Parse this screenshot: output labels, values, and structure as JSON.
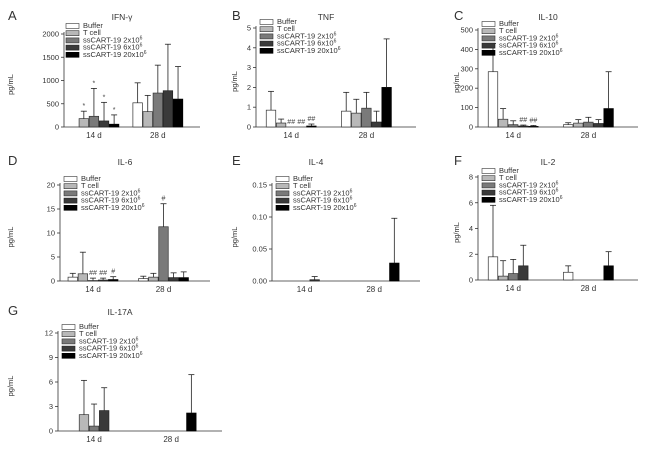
{
  "figure": {
    "legend_entries": [
      {
        "text": "Buffer",
        "sup": ""
      },
      {
        "text": "T cell",
        "sup": ""
      },
      {
        "text": "ssCART-19 2x10",
        "sup": "6"
      },
      {
        "text": "ssCART-19 6x10",
        "sup": "6"
      },
      {
        "text": "ssCART-19 20x10",
        "sup": "6"
      }
    ],
    "series_colors": [
      "#ffffff",
      "#b8b8b8",
      "#7a7a7a",
      "#3a3a3a",
      "#000000"
    ],
    "series_borders": [
      "#333333",
      "#333333",
      "#333333",
      "#222222",
      "#000000"
    ]
  },
  "chart_data": [
    {
      "letter": "A",
      "title": "IFN-γ",
      "type": "bar",
      "categories": [
        "14 d",
        "28 d"
      ],
      "ylabel": "pg/mL",
      "ylim": [
        0,
        2000
      ],
      "yticks": [
        "0",
        "500",
        "1000",
        "1500",
        "2000"
      ],
      "ytick_values": [
        0,
        500,
        1000,
        1500,
        2000
      ],
      "series": [
        {
          "values": [
            0,
            520
          ],
          "errors": [
            0,
            430
          ]
        },
        {
          "values": [
            180,
            330
          ],
          "errors": [
            160,
            350
          ]
        },
        {
          "values": [
            230,
            730
          ],
          "errors": [
            600,
            600
          ]
        },
        {
          "values": [
            130,
            780
          ],
          "errors": [
            400,
            1000
          ]
        },
        {
          "values": [
            60,
            600
          ],
          "errors": [
            200,
            700
          ]
        }
      ],
      "annotations": [
        {
          "series": 1,
          "cat": 0,
          "text": "*"
        },
        {
          "series": 2,
          "cat": 0,
          "text": "*"
        },
        {
          "series": 3,
          "cat": 0,
          "text": "*"
        },
        {
          "series": 4,
          "cat": 0,
          "text": "*"
        }
      ]
    },
    {
      "letter": "B",
      "title": "TNF",
      "type": "bar",
      "categories": [
        "14 d",
        "28 d"
      ],
      "ylabel": "pg/mL",
      "ylim": [
        0,
        5
      ],
      "yticks": [
        "0",
        "1",
        "2",
        "3",
        "4",
        "5"
      ],
      "ytick_values": [
        0,
        1,
        2,
        3,
        4,
        5
      ],
      "series": [
        {
          "values": [
            0.85,
            0.8
          ],
          "errors": [
            0.95,
            0.95
          ]
        },
        {
          "values": [
            0.2,
            0.7
          ],
          "errors": [
            0.2,
            0.7
          ]
        },
        {
          "values": [
            0.0,
            0.95
          ],
          "errors": [
            0.0,
            0.8
          ]
        },
        {
          "values": [
            0.0,
            0.25
          ],
          "errors": [
            0.0,
            0.55
          ]
        },
        {
          "values": [
            0.05,
            2.0
          ],
          "errors": [
            0.1,
            2.45
          ]
        }
      ],
      "annotations": [
        {
          "series": 2,
          "cat": 0,
          "text": "##"
        },
        {
          "series": 3,
          "cat": 0,
          "text": "##"
        },
        {
          "series": 4,
          "cat": 0,
          "text": "##"
        }
      ]
    },
    {
      "letter": "C",
      "title": "IL-10",
      "type": "bar",
      "categories": [
        "14 d",
        "28 d"
      ],
      "ylabel": "pg/mL",
      "ylim": [
        0,
        500
      ],
      "yticks": [
        "0",
        "100",
        "200",
        "300",
        "400",
        "500"
      ],
      "ytick_values": [
        0,
        100,
        200,
        300,
        400,
        500
      ],
      "series": [
        {
          "values": [
            285,
            12
          ],
          "errors": [
            145,
            10
          ]
        },
        {
          "values": [
            40,
            20
          ],
          "errors": [
            55,
            18
          ]
        },
        {
          "values": [
            12,
            25
          ],
          "errors": [
            20,
            25
          ]
        },
        {
          "values": [
            5,
            18
          ],
          "errors": [
            5,
            20
          ]
        },
        {
          "values": [
            3,
            95
          ],
          "errors": [
            5,
            190
          ]
        }
      ],
      "annotations": [
        {
          "series": 3,
          "cat": 0,
          "text": "##"
        },
        {
          "series": 4,
          "cat": 0,
          "text": "##"
        }
      ]
    },
    {
      "letter": "D",
      "title": "IL-6",
      "type": "bar",
      "categories": [
        "14 d",
        "28 d"
      ],
      "ylabel": "pg/mL",
      "ylim": [
        0,
        20
      ],
      "yticks": [
        "0",
        "5",
        "10",
        "15",
        "20"
      ],
      "ytick_values": [
        0,
        5,
        10,
        15,
        20
      ],
      "series": [
        {
          "values": [
            0.8,
            0.5
          ],
          "errors": [
            0.8,
            0.5
          ]
        },
        {
          "values": [
            1.5,
            0.8
          ],
          "errors": [
            4.5,
            0.8
          ]
        },
        {
          "values": [
            0.1,
            11.3
          ],
          "errors": [
            0.5,
            4.8
          ]
        },
        {
          "values": [
            0.2,
            0.7
          ],
          "errors": [
            0.4,
            1.0
          ]
        },
        {
          "values": [
            0.3,
            0.7
          ],
          "errors": [
            0.6,
            1.2
          ]
        }
      ],
      "annotations": [
        {
          "series": 2,
          "cat": 0,
          "text": "##"
        },
        {
          "series": 3,
          "cat": 0,
          "text": "##"
        },
        {
          "series": 4,
          "cat": 0,
          "text": "#"
        },
        {
          "series": 2,
          "cat": 1,
          "text": "#"
        }
      ]
    },
    {
      "letter": "E",
      "title": "IL-4",
      "type": "bar",
      "categories": [
        "14 d",
        "28 d"
      ],
      "ylabel": "pg/mL",
      "ylim": [
        0,
        0.15
      ],
      "yticks": [
        "0.00",
        "0.05",
        "0.10",
        "0.15"
      ],
      "ytick_values": [
        0,
        0.05,
        0.1,
        0.15
      ],
      "series": [
        {
          "values": [
            0,
            0
          ],
          "errors": [
            0,
            0
          ]
        },
        {
          "values": [
            0,
            0
          ],
          "errors": [
            0,
            0
          ]
        },
        {
          "values": [
            0,
            0
          ],
          "errors": [
            0,
            0
          ]
        },
        {
          "values": [
            0.002,
            0
          ],
          "errors": [
            0.005,
            0
          ]
        },
        {
          "values": [
            0,
            0.028
          ],
          "errors": [
            0,
            0.07
          ]
        }
      ],
      "annotations": []
    },
    {
      "letter": "F",
      "title": "IL-2",
      "type": "bar",
      "categories": [
        "14 d",
        "28 d"
      ],
      "ylabel": "pg/mL",
      "ylim": [
        0,
        8
      ],
      "yticks": [
        "0",
        "2",
        "4",
        "6",
        "8"
      ],
      "ytick_values": [
        0,
        2,
        4,
        6,
        8
      ],
      "series": [
        {
          "values": [
            1.8,
            0.6
          ],
          "errors": [
            4.0,
            0.5
          ]
        },
        {
          "values": [
            0.3,
            0
          ],
          "errors": [
            1.2,
            0
          ]
        },
        {
          "values": [
            0.5,
            0
          ],
          "errors": [
            1.1,
            0
          ]
        },
        {
          "values": [
            1.1,
            0
          ],
          "errors": [
            1.6,
            0
          ]
        },
        {
          "values": [
            0,
            1.1
          ],
          "errors": [
            0,
            1.1
          ]
        }
      ],
      "annotations": []
    },
    {
      "letter": "G",
      "title": "IL-17A",
      "type": "bar",
      "categories": [
        "14 d",
        "28 d"
      ],
      "ylabel": "pg/mL",
      "ylim": [
        0,
        12
      ],
      "yticks": [
        "0",
        "3",
        "6",
        "9",
        "12"
      ],
      "ytick_values": [
        0,
        3,
        6,
        9,
        12
      ],
      "series": [
        {
          "values": [
            0,
            0
          ],
          "errors": [
            0,
            0
          ]
        },
        {
          "values": [
            2.0,
            0
          ],
          "errors": [
            4.2,
            0
          ]
        },
        {
          "values": [
            0.6,
            0
          ],
          "errors": [
            2.7,
            0
          ]
        },
        {
          "values": [
            2.5,
            0
          ],
          "errors": [
            2.8,
            0
          ]
        },
        {
          "values": [
            0,
            2.2
          ],
          "errors": [
            0,
            4.7
          ]
        }
      ],
      "annotations": []
    }
  ]
}
